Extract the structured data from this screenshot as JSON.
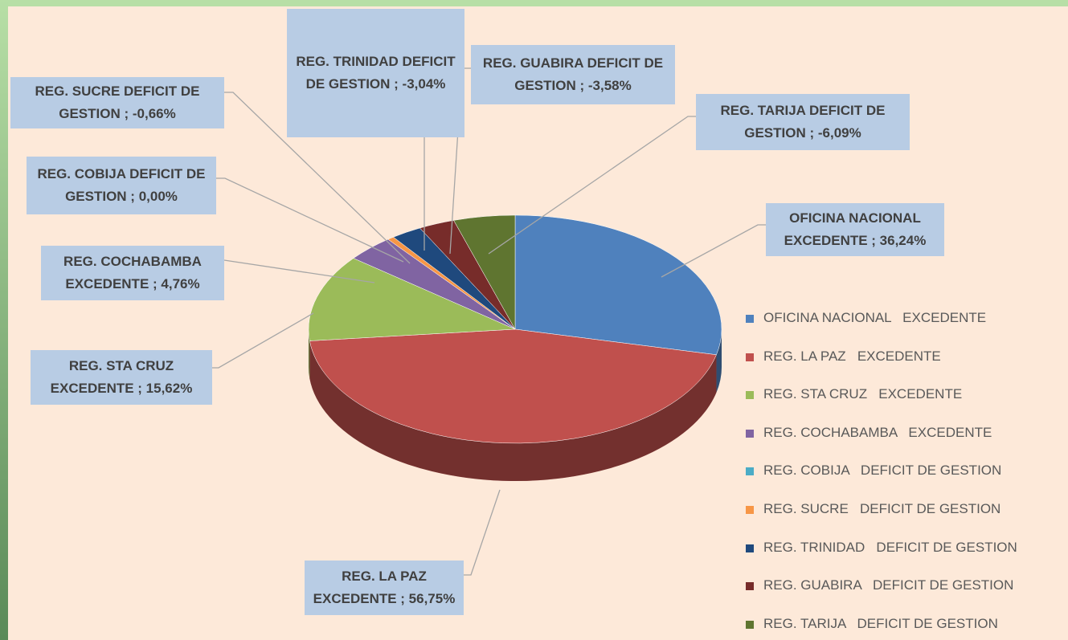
{
  "chart_data": {
    "type": "pie",
    "categories": [
      "OFICINA NACIONAL   EXCEDENTE",
      "REG. LA PAZ   EXCEDENTE",
      "REG. STA CRUZ   EXCEDENTE",
      "REG. COCHABAMBA   EXCEDENTE",
      "REG. COBIJA   DEFICIT DE GESTION",
      "REG. SUCRE   DEFICIT DE GESTION",
      "REG. TRINIDAD   DEFICIT DE GESTION",
      "REG. GUABIRA   DEFICIT DE GESTION",
      "REG. TARIJA   DEFICIT DE GESTION"
    ],
    "values": [
      36.24,
      56.75,
      15.62,
      4.76,
      0.0,
      -0.66,
      -3.04,
      -3.58,
      -6.09
    ],
    "value_labels": [
      "OFICINA NACIONAL EXCEDENTE ; 36,24%",
      "REG. LA PAZ EXCEDENTE ; 56,75%",
      "REG. STA CRUZ EXCEDENTE ; 15,62%",
      "REG. COCHABAMBA EXCEDENTE ; 4,76%",
      "REG. COBIJA   DEFICIT DE GESTION ; 0,00%",
      "REG. SUCRE   DEFICIT DE GESTION ; -0,66%",
      "REG. TRINIDAD DEFICIT DE GESTION ; -3,04%",
      "REG. GUABIRA   DEFICIT DE GESTION ; -3,58%",
      "REG. TARIJA   DEFICIT DE GESTION ; -6,09%"
    ],
    "colors": [
      "#4f81bd",
      "#c0504d",
      "#9bbb59",
      "#8064a2",
      "#4bacc6",
      "#f79646",
      "#1f497d",
      "#772c2a",
      "#5f7530"
    ],
    "legend": "right"
  }
}
